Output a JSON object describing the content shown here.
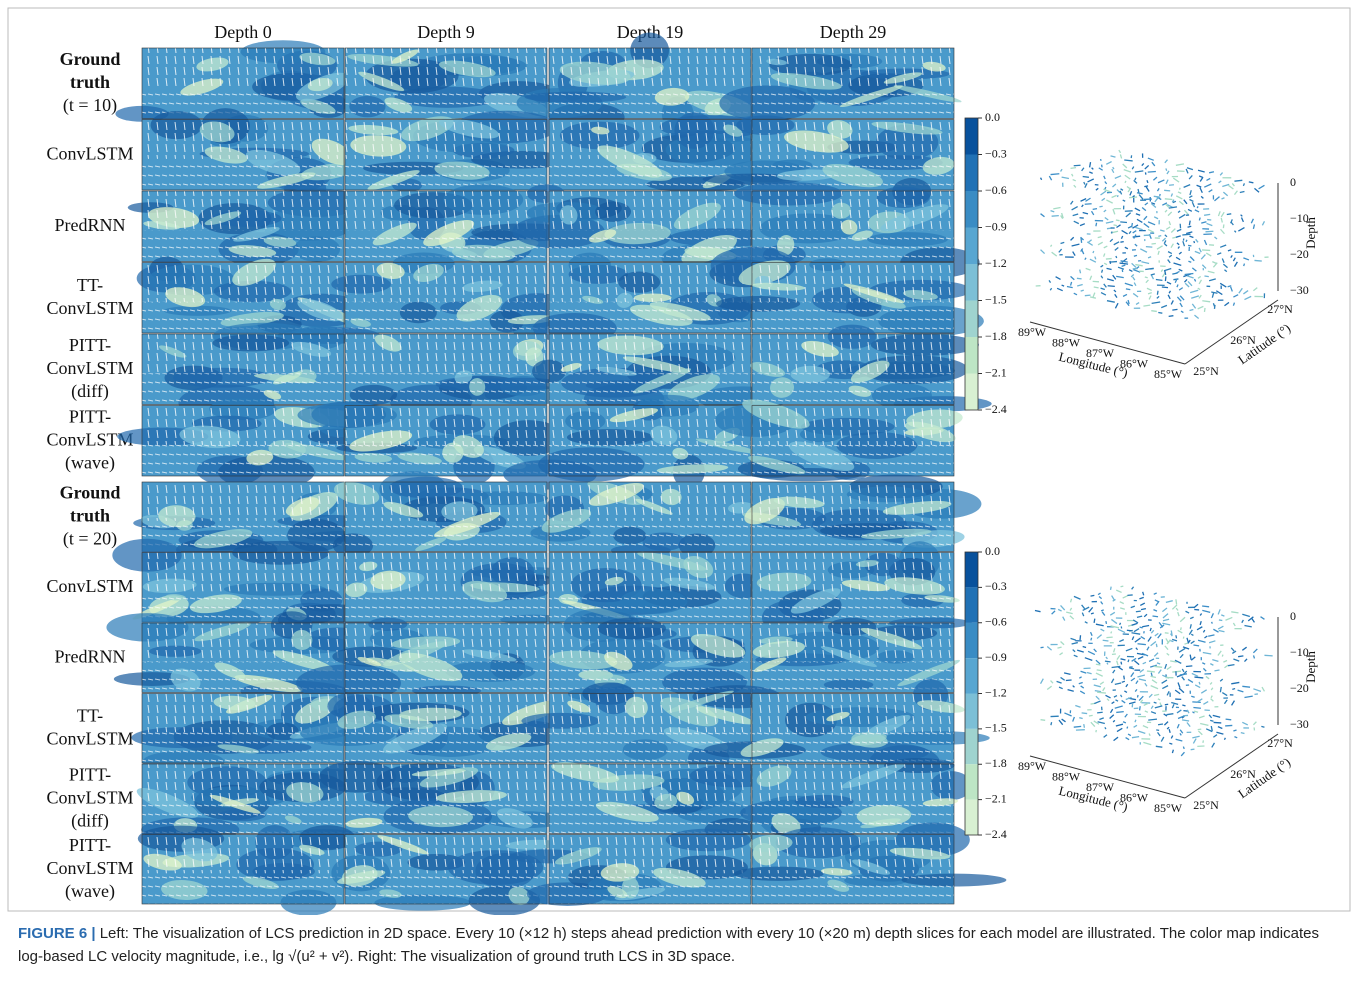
{
  "columns": [
    "Depth 0",
    "Depth 9",
    "Depth 19",
    "Depth 29"
  ],
  "blocks": [
    {
      "rows": [
        [
          "Ground",
          "truth",
          "(t = 10)"
        ],
        [
          "ConvLSTM"
        ],
        [
          "PredRNN"
        ],
        [
          "TT-",
          "ConvLSTM"
        ],
        [
          "PITT-",
          "ConvLSTM",
          "(diff)"
        ],
        [
          "PITT-",
          "ConvLSTM",
          "(wave)"
        ]
      ],
      "colorbar": [
        "0.0",
        "−0.3",
        "−0.6",
        "−0.9",
        "−1.2",
        "−1.5",
        "−1.8",
        "−2.1",
        "−2.4"
      ],
      "plot3d": {
        "zticks": [
          "0",
          "−10",
          "−20",
          "−30"
        ],
        "zlabel": "Depth",
        "xticks": [
          "89°W",
          "88°W",
          "87°W",
          "86°W",
          "85°W"
        ],
        "xlabel": "Longitude (°)",
        "yticks": [
          "25°N",
          "26°N",
          "27°N"
        ],
        "ylabel": "Latitude (°)"
      }
    },
    {
      "rows": [
        [
          "Ground",
          "truth",
          "(t = 20)"
        ],
        [
          "ConvLSTM"
        ],
        [
          "PredRNN"
        ],
        [
          "TT-",
          "ConvLSTM"
        ],
        [
          "PITT-",
          "ConvLSTM",
          "(diff)"
        ],
        [
          "PITT-",
          "ConvLSTM",
          "(wave)"
        ]
      ],
      "colorbar": [
        "0.0",
        "−0.3",
        "−0.6",
        "−0.9",
        "−1.2",
        "−1.5",
        "−1.8",
        "−2.1",
        "−2.4"
      ],
      "plot3d": {
        "zticks": [
          "0",
          "−10",
          "−20",
          "−30"
        ],
        "zlabel": "Depth",
        "xticks": [
          "89°W",
          "88°W",
          "87°W",
          "86°W",
          "85°W"
        ],
        "xlabel": "Longitude (°)",
        "yticks": [
          "25°N",
          "26°N",
          "27°N"
        ],
        "ylabel": "Latitude (°)"
      }
    }
  ],
  "caption": {
    "label": "FIGURE 6 |",
    "text": " Left: The visualization of LCS prediction in 2D space. Every 10 (×12 h) steps ahead prediction with every 10 (×20 m) depth slices for each model are illustrated. The color map indicates log-based LC velocity magnitude, i.e., ",
    "formula": "lg √(u² + v²)",
    "text_end": ". Right: The visualization of ground truth LCS in 3D space."
  }
}
